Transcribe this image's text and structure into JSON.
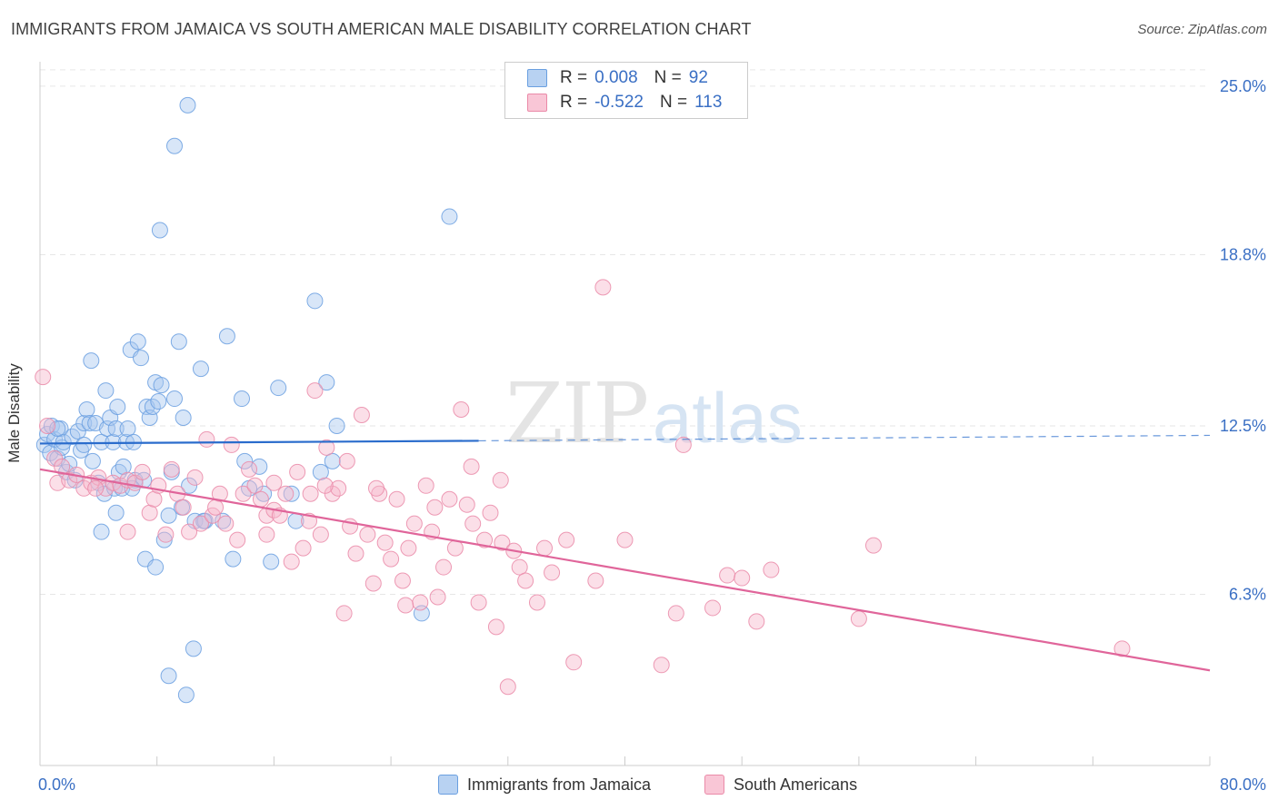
{
  "title": "IMMIGRANTS FROM JAMAICA VS SOUTH AMERICAN MALE DISABILITY CORRELATION CHART",
  "source": "Source: ZipAtlas.com",
  "watermark": {
    "zip": "ZIP",
    "atlas": "atlas"
  },
  "legend": {
    "series": [
      {
        "name": "Immigrants from Jamaica",
        "r_label": "R =",
        "r_value": "0.008",
        "n_label": "N =",
        "n_value": "92",
        "fill": "#a8c8f0",
        "stroke": "#6a9fe0"
      },
      {
        "name": "South Americans",
        "r_label": "R =",
        "r_value": "-0.522",
        "n_label": "N =",
        "n_value": "113",
        "fill": "#f7b8cc",
        "stroke": "#ea8aa8"
      }
    ]
  },
  "chart_data": {
    "type": "scatter",
    "ylabel": "Male Disability",
    "xlim": [
      0,
      80
    ],
    "ylim": [
      0,
      25.9
    ],
    "x_tick_labels": [
      {
        "value": 0,
        "label": "0.0%"
      },
      {
        "value": 80,
        "label": "80.0%"
      }
    ],
    "y_tick_labels": [
      {
        "value": 6.3,
        "label": "6.3%"
      },
      {
        "value": 12.5,
        "label": "12.5%"
      },
      {
        "value": 18.8,
        "label": "18.8%"
      },
      {
        "value": 25.0,
        "label": "25.0%"
      }
    ],
    "grid": true,
    "series": [
      {
        "name": "Immigrants from Jamaica",
        "color": "#6a9fe0",
        "fill": "#a8c8f0",
        "trend": {
          "x": [
            0,
            30
          ],
          "y": [
            11.85,
            11.95
          ],
          "dashed_to": [
            80,
            12.15
          ],
          "color": "#2a6ccc"
        },
        "points": [
          [
            0.3,
            11.8
          ],
          [
            0.5,
            12.2
          ],
          [
            0.7,
            11.5
          ],
          [
            0.8,
            12.5
          ],
          [
            1.0,
            12.0
          ],
          [
            1.2,
            11.3
          ],
          [
            1.4,
            12.4
          ],
          [
            1.5,
            11.7
          ],
          [
            1.6,
            11.9
          ],
          [
            1.8,
            10.8
          ],
          [
            2.0,
            11.1
          ],
          [
            2.2,
            12.1
          ],
          [
            2.4,
            10.5
          ],
          [
            2.6,
            12.3
          ],
          [
            2.8,
            11.6
          ],
          [
            3.0,
            12.6
          ],
          [
            3.2,
            13.1
          ],
          [
            3.4,
            12.6
          ],
          [
            3.5,
            14.9
          ],
          [
            3.6,
            11.2
          ],
          [
            3.8,
            12.6
          ],
          [
            4.0,
            10.4
          ],
          [
            4.2,
            11.9
          ],
          [
            4.4,
            10.0
          ],
          [
            4.5,
            13.8
          ],
          [
            4.6,
            12.4
          ],
          [
            4.8,
            12.8
          ],
          [
            5.0,
            11.9
          ],
          [
            5.1,
            10.2
          ],
          [
            5.2,
            12.4
          ],
          [
            5.3,
            13.2
          ],
          [
            5.4,
            10.8
          ],
          [
            5.6,
            10.2
          ],
          [
            5.7,
            11.0
          ],
          [
            5.9,
            11.9
          ],
          [
            6.0,
            12.4
          ],
          [
            6.2,
            15.3
          ],
          [
            6.4,
            11.9
          ],
          [
            6.5,
            10.5
          ],
          [
            6.7,
            15.6
          ],
          [
            6.9,
            15.0
          ],
          [
            7.1,
            10.5
          ],
          [
            7.3,
            13.2
          ],
          [
            7.5,
            12.8
          ],
          [
            7.7,
            13.2
          ],
          [
            7.9,
            14.1
          ],
          [
            8.1,
            13.4
          ],
          [
            8.3,
            14.0
          ],
          [
            8.5,
            8.3
          ],
          [
            8.8,
            9.2
          ],
          [
            9.0,
            10.8
          ],
          [
            9.2,
            13.5
          ],
          [
            9.5,
            15.6
          ],
          [
            9.8,
            12.8
          ],
          [
            10.2,
            10.3
          ],
          [
            10.6,
            9.0
          ],
          [
            11.0,
            14.6
          ],
          [
            11.3,
            9.0
          ],
          [
            12.5,
            9.0
          ],
          [
            12.8,
            15.8
          ],
          [
            13.2,
            7.6
          ],
          [
            13.8,
            13.5
          ],
          [
            14.0,
            11.2
          ],
          [
            14.3,
            10.2
          ],
          [
            15.0,
            11.0
          ],
          [
            15.3,
            10.0
          ],
          [
            15.8,
            7.5
          ],
          [
            16.3,
            13.9
          ],
          [
            17.2,
            10.0
          ],
          [
            17.5,
            9.0
          ],
          [
            18.8,
            17.1
          ],
          [
            19.2,
            10.8
          ],
          [
            19.6,
            14.1
          ],
          [
            20.3,
            12.5
          ],
          [
            20.0,
            11.2
          ],
          [
            5.2,
            9.3
          ],
          [
            4.2,
            8.6
          ],
          [
            7.2,
            7.6
          ],
          [
            7.9,
            7.3
          ],
          [
            10.5,
            4.3
          ],
          [
            10.0,
            2.6
          ],
          [
            8.8,
            3.3
          ],
          [
            11.2,
            9.0
          ],
          [
            9.7,
            9.5
          ],
          [
            26.1,
            5.6
          ],
          [
            28.0,
            20.2
          ],
          [
            8.2,
            19.7
          ],
          [
            9.2,
            22.8
          ],
          [
            10.1,
            24.3
          ],
          [
            3.0,
            11.8
          ],
          [
            6.3,
            10.2
          ],
          [
            1.2,
            12.4
          ]
        ]
      },
      {
        "name": "South Americans",
        "color": "#ea8aa8",
        "fill": "#f7b8cc",
        "trend": {
          "x": [
            0,
            80
          ],
          "y": [
            10.9,
            3.5
          ],
          "color": "#e0659a"
        },
        "points": [
          [
            0.2,
            14.3
          ],
          [
            0.5,
            12.5
          ],
          [
            1.0,
            11.3
          ],
          [
            1.2,
            10.4
          ],
          [
            1.5,
            11.0
          ],
          [
            2.0,
            10.5
          ],
          [
            2.5,
            10.7
          ],
          [
            3.0,
            10.2
          ],
          [
            3.5,
            10.4
          ],
          [
            4.0,
            10.6
          ],
          [
            4.5,
            10.2
          ],
          [
            5.0,
            10.4
          ],
          [
            5.5,
            10.3
          ],
          [
            6.0,
            10.5
          ],
          [
            6.5,
            10.4
          ],
          [
            7.0,
            10.8
          ],
          [
            7.5,
            9.3
          ],
          [
            7.8,
            9.8
          ],
          [
            8.1,
            10.3
          ],
          [
            8.6,
            8.5
          ],
          [
            9.0,
            10.9
          ],
          [
            9.4,
            10.0
          ],
          [
            9.8,
            9.5
          ],
          [
            10.2,
            8.6
          ],
          [
            10.6,
            10.6
          ],
          [
            11.0,
            8.9
          ],
          [
            11.4,
            12.0
          ],
          [
            11.8,
            9.2
          ],
          [
            12.3,
            10.0
          ],
          [
            12.7,
            8.9
          ],
          [
            13.1,
            11.8
          ],
          [
            13.5,
            8.3
          ],
          [
            13.9,
            10.0
          ],
          [
            14.3,
            10.9
          ],
          [
            14.7,
            10.3
          ],
          [
            15.1,
            9.8
          ],
          [
            15.5,
            9.2
          ],
          [
            16.0,
            9.4
          ],
          [
            16.4,
            9.2
          ],
          [
            16.8,
            10.0
          ],
          [
            17.2,
            7.5
          ],
          [
            17.6,
            10.8
          ],
          [
            18.0,
            8.0
          ],
          [
            18.4,
            9.0
          ],
          [
            18.8,
            13.8
          ],
          [
            19.2,
            8.5
          ],
          [
            19.6,
            11.7
          ],
          [
            20.0,
            10.0
          ],
          [
            20.4,
            10.2
          ],
          [
            20.8,
            5.6
          ],
          [
            21.2,
            8.8
          ],
          [
            21.6,
            7.8
          ],
          [
            22.0,
            12.9
          ],
          [
            22.4,
            8.5
          ],
          [
            22.8,
            6.7
          ],
          [
            23.2,
            10.0
          ],
          [
            23.6,
            8.2
          ],
          [
            24.0,
            7.6
          ],
          [
            24.4,
            9.8
          ],
          [
            24.8,
            6.8
          ],
          [
            25.2,
            8.0
          ],
          [
            25.6,
            8.9
          ],
          [
            26.0,
            6.0
          ],
          [
            26.4,
            10.3
          ],
          [
            26.8,
            8.6
          ],
          [
            27.2,
            6.2
          ],
          [
            27.6,
            7.3
          ],
          [
            28.0,
            9.8
          ],
          [
            28.4,
            8.0
          ],
          [
            28.8,
            13.1
          ],
          [
            29.2,
            9.6
          ],
          [
            29.6,
            8.9
          ],
          [
            30.0,
            6.0
          ],
          [
            30.4,
            8.3
          ],
          [
            30.8,
            9.3
          ],
          [
            31.2,
            5.1
          ],
          [
            31.6,
            8.2
          ],
          [
            32.0,
            2.9
          ],
          [
            32.4,
            7.9
          ],
          [
            32.8,
            7.3
          ],
          [
            33.2,
            6.8
          ],
          [
            34.0,
            6.0
          ],
          [
            35.0,
            7.1
          ],
          [
            36.0,
            8.3
          ],
          [
            36.5,
            3.8
          ],
          [
            38.0,
            6.8
          ],
          [
            40.0,
            8.3
          ],
          [
            42.5,
            3.7
          ],
          [
            43.5,
            5.6
          ],
          [
            44.0,
            11.8
          ],
          [
            46.0,
            5.8
          ],
          [
            47.0,
            7.0
          ],
          [
            48.0,
            6.9
          ],
          [
            49.0,
            5.3
          ],
          [
            50.0,
            7.2
          ],
          [
            56.0,
            5.4
          ],
          [
            57.0,
            8.1
          ],
          [
            74.0,
            4.3
          ],
          [
            3.8,
            10.2
          ],
          [
            6.0,
            8.6
          ],
          [
            12.0,
            9.5
          ],
          [
            16.0,
            10.4
          ],
          [
            19.5,
            10.3
          ],
          [
            23.0,
            10.2
          ],
          [
            27.0,
            9.5
          ],
          [
            29.5,
            11.0
          ],
          [
            31.5,
            10.5
          ],
          [
            34.5,
            8.0
          ],
          [
            38.5,
            17.6
          ],
          [
            15.5,
            8.5
          ],
          [
            18.5,
            10.0
          ],
          [
            21.0,
            11.2
          ],
          [
            25.0,
            5.9
          ]
        ]
      }
    ]
  }
}
